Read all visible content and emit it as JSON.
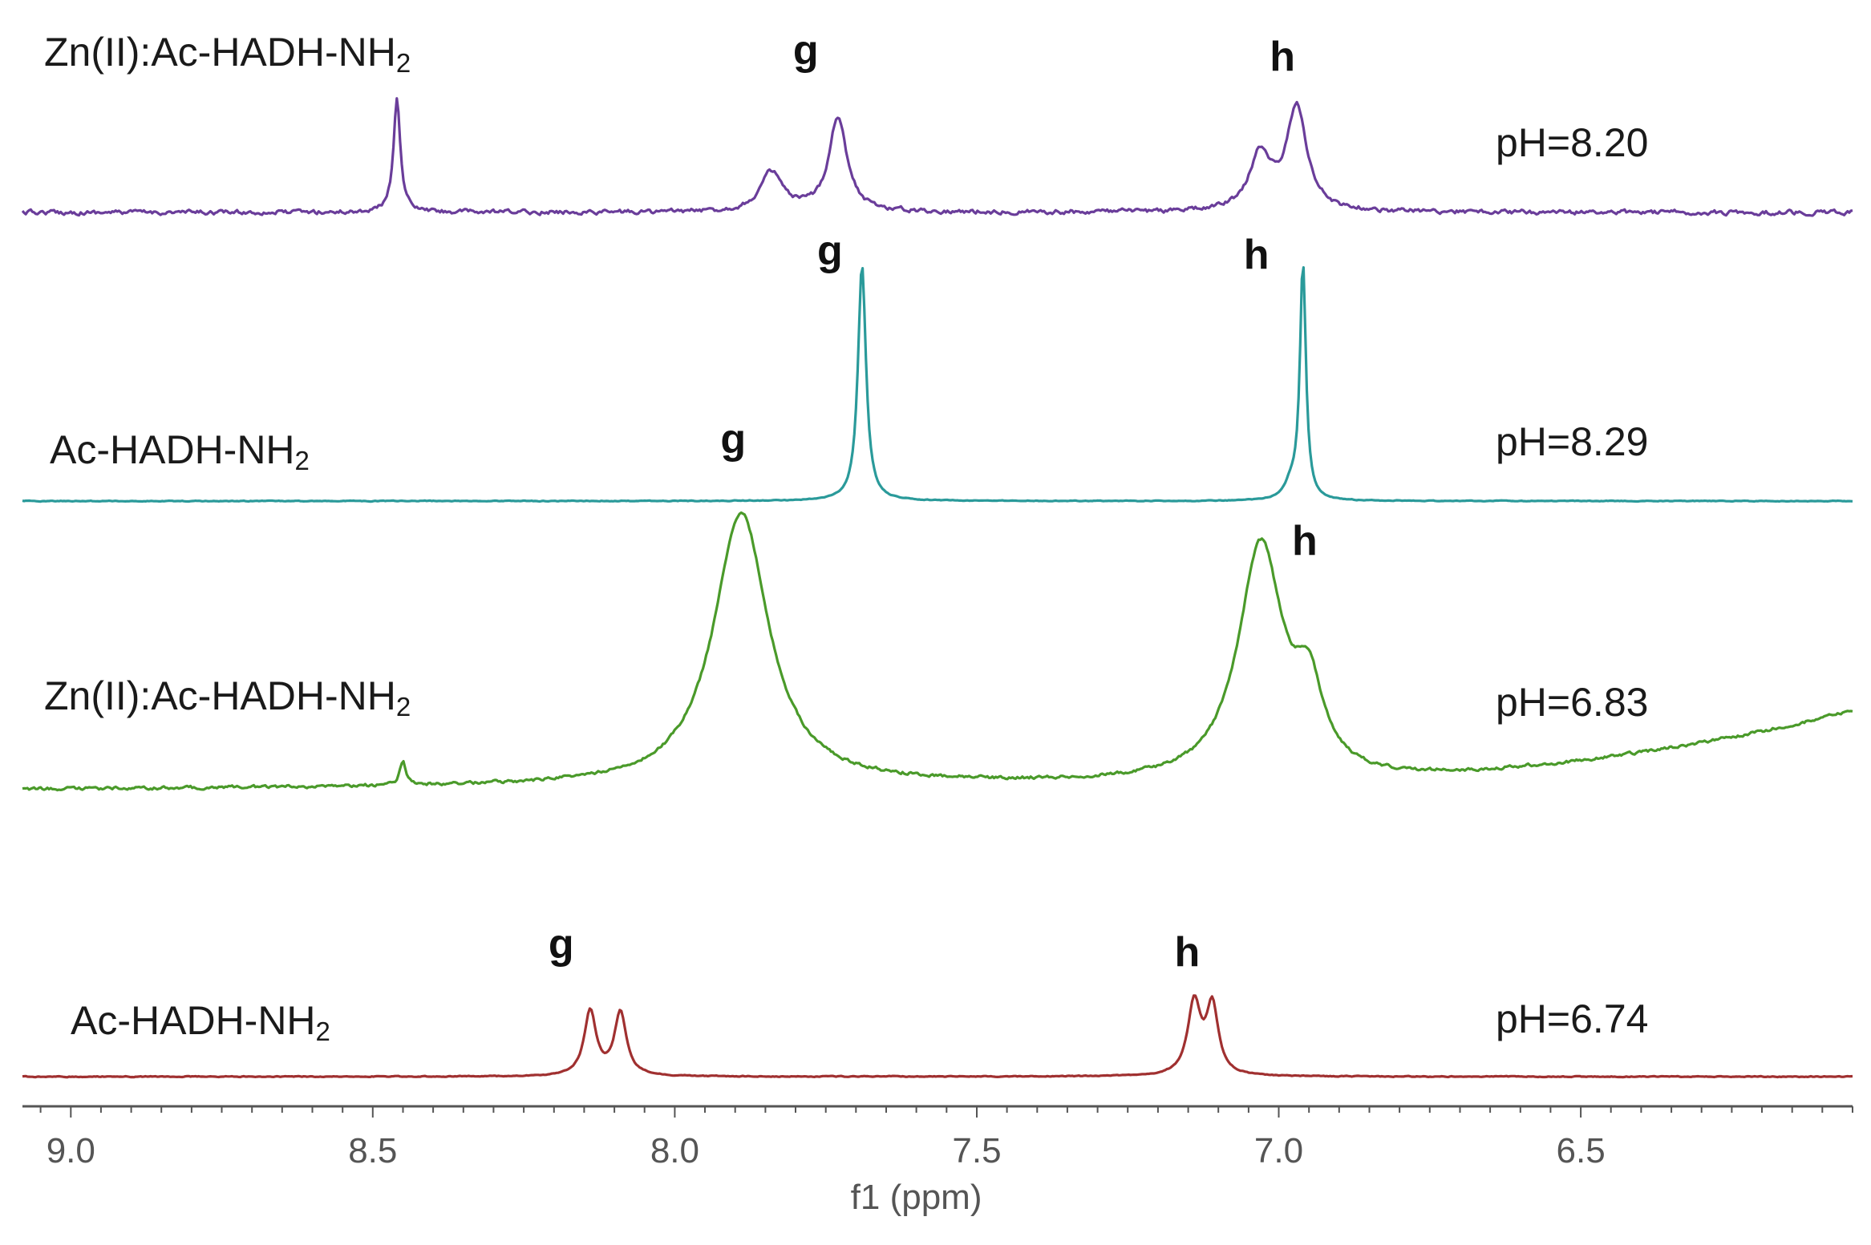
{
  "chart_data": {
    "type": "line",
    "title": "",
    "xlabel": "f1 (ppm)",
    "ylabel": "",
    "xlim": [
      9.08,
      6.05
    ],
    "x_reversed": true,
    "x_ticks": [
      "9.0",
      "8.5",
      "8.0",
      "7.5",
      "7.0",
      "6.5"
    ],
    "series": [
      {
        "sample_prefix": "Zn(II):Ac-HADH-NH",
        "sample_sub": "2",
        "ph": "pH=8.20",
        "color": "#6a3d9a",
        "peaks": [
          {
            "x": 8.46,
            "height": 1.0,
            "width": 0.007
          },
          {
            "x": 7.84,
            "height": 0.35,
            "width": 0.022
          },
          {
            "x": 7.73,
            "height": 0.85,
            "width": 0.018
          },
          {
            "x": 7.03,
            "height": 0.5,
            "width": 0.022
          },
          {
            "x": 6.97,
            "height": 0.92,
            "width": 0.02
          }
        ],
        "peak_labels": [
          {
            "text": "g",
            "x": 7.73
          },
          {
            "text": "h",
            "x": 6.97
          }
        ]
      },
      {
        "sample_prefix": "Ac-HADH-NH",
        "sample_sub": "2",
        "ph": "pH=8.29",
        "color": "#2a9a9a",
        "peaks": [
          {
            "x": 7.69,
            "height": 1.0,
            "width": 0.008
          },
          {
            "x": 6.96,
            "height": 1.0,
            "width": 0.006
          },
          {
            "x": 6.98,
            "height": 0.06,
            "width": 0.012
          }
        ],
        "peak_labels": [
          {
            "text": "g",
            "x": 7.69
          },
          {
            "text": "h",
            "x": 6.96
          }
        ]
      },
      {
        "sample_prefix": "Zn(II):Ac-HADH-NH",
        "sample_sub": "2",
        "ph": "pH=6.83",
        "color": "#4a9a2a",
        "peaks": [
          {
            "x": 8.45,
            "height": 0.09,
            "width": 0.006
          },
          {
            "x": 7.89,
            "height": 1.0,
            "width": 0.055
          },
          {
            "x": 7.03,
            "height": 0.86,
            "width": 0.045
          },
          {
            "x": 6.95,
            "height": 0.28,
            "width": 0.028
          }
        ],
        "peak_labels": [
          {
            "text": "g",
            "x": 7.89
          },
          {
            "text": "h",
            "x": 7.03
          }
        ]
      },
      {
        "sample_prefix": "Ac-HADH-NH",
        "sample_sub": "2",
        "ph": "pH=6.74",
        "color": "#a03030",
        "peaks": [
          {
            "x": 8.14,
            "height": 0.9,
            "width": 0.012
          },
          {
            "x": 8.09,
            "height": 0.88,
            "width": 0.012
          },
          {
            "x": 7.14,
            "height": 1.0,
            "width": 0.013
          },
          {
            "x": 7.11,
            "height": 0.95,
            "width": 0.012
          }
        ],
        "peak_labels": [
          {
            "text": "g",
            "x": 8.115
          },
          {
            "text": "h",
            "x": 7.125
          }
        ]
      }
    ],
    "grid": false,
    "legend": "none"
  }
}
